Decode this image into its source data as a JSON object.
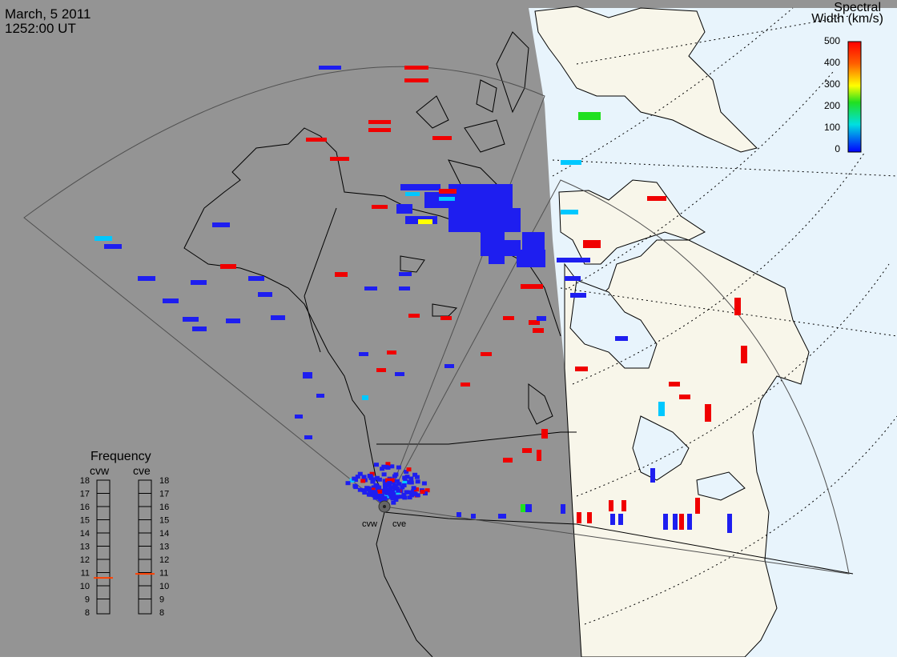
{
  "header": {
    "date": "March, 5 2011",
    "time": "1252:00 UT"
  },
  "colorbar": {
    "title_line1": "Spectral",
    "title_line2": "Width (km/s)",
    "tick_labels": [
      "500",
      "400",
      "300",
      "200",
      "100",
      "0"
    ],
    "colors": [
      "#ff0000",
      "#ffa000",
      "#ffff00",
      "#00d000",
      "#00e0e0",
      "#0000ff"
    ]
  },
  "frequency_panel": {
    "title": "Frequency",
    "radars": [
      {
        "code": "cvw",
        "selected_mhz": 10.6
      },
      {
        "code": "cve",
        "selected_mhz": 10.9
      }
    ],
    "scale_labels": [
      "18",
      "17",
      "16",
      "15",
      "14",
      "13",
      "12",
      "11",
      "10",
      "9",
      "8"
    ],
    "indicator_color": "#ff4000"
  },
  "radar_sites": [
    {
      "code": "cvw"
    },
    {
      "code": "cve"
    }
  ],
  "colors": {
    "night": "#949494",
    "day_land": "#f8f6ea",
    "day_ocean": "#e8f4fc",
    "coastline": "#000000",
    "fov": "#505050",
    "low_width": "#1e1ef0",
    "high_width": "#f00000"
  },
  "map_style": {
    "projection": "polar stereographic",
    "grid": "dotted latitude circles and meridians",
    "terminator": "day/night shading"
  }
}
